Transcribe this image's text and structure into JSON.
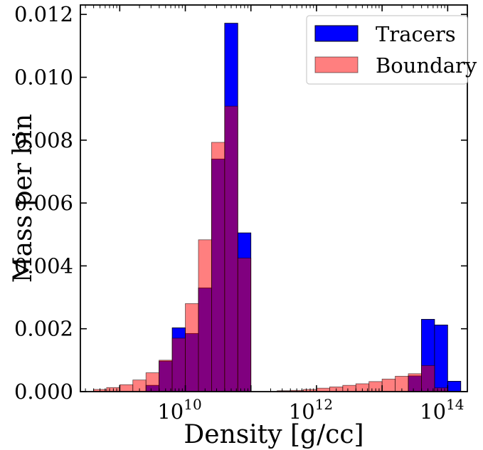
{
  "chart_data": {
    "type": "bar",
    "xlabel": "Density [g/cc]",
    "ylabel": "Mass per bin",
    "x_scale": "log",
    "xlim_log10": [
      8.4,
      14.3
    ],
    "ylim": [
      0,
      0.0123
    ],
    "x_ticks": [
      {
        "log10": 10,
        "base": "10",
        "exp": "10"
      },
      {
        "log10": 12,
        "base": "10",
        "exp": "12"
      },
      {
        "log10": 14,
        "base": "10",
        "exp": "14"
      }
    ],
    "y_ticks": [
      "0.000",
      "0.002",
      "0.004",
      "0.006",
      "0.008",
      "0.010",
      "0.012"
    ],
    "y_tick_values": [
      0,
      0.002,
      0.004,
      0.006,
      0.008,
      0.01,
      0.012
    ],
    "grid": false,
    "legend_position": "top-right",
    "bin_log10_edges": [
      8.6,
      8.8,
      9.0,
      9.2,
      9.4,
      9.6,
      9.8,
      10.0,
      10.2,
      10.4,
      10.6,
      10.8,
      11.0,
      11.2,
      11.4,
      11.6,
      11.8,
      12.0,
      12.2,
      12.4,
      12.6,
      12.8,
      13.0,
      13.2,
      13.4,
      13.6,
      13.8,
      14.0,
      14.2
    ],
    "series": [
      {
        "name": "Tracers",
        "color": "#0000ff",
        "alpha": 1.0,
        "values": [
          0,
          0,
          0,
          0,
          0.0002,
          0.00097,
          0.00203,
          0.00185,
          0.0033,
          0.0074,
          0.01172,
          0.00505,
          0,
          0,
          0,
          0,
          0,
          0,
          0,
          0,
          0,
          0,
          0,
          0,
          0.0005,
          0.0023,
          0.00212,
          0.00033
        ]
      },
      {
        "name": "Boundary",
        "color": "#ff0000",
        "alpha": 0.5,
        "values": [
          7e-05,
          0.00013,
          0.00022,
          0.00037,
          0.0006,
          0.001,
          0.0017,
          0.0028,
          0.00483,
          0.00793,
          0.00908,
          0.00425,
          0,
          0,
          3e-05,
          4e-05,
          7e-05,
          0.00011,
          0.00015,
          0.0002,
          0.00025,
          0.00032,
          0.0004,
          0.00049,
          0.00057,
          0.00083,
          0.00012,
          0
        ]
      }
    ]
  },
  "colors": {
    "tracers": "#0000ff",
    "boundary": "#ff0000",
    "overlap": "#800080",
    "axis": "#000000"
  }
}
